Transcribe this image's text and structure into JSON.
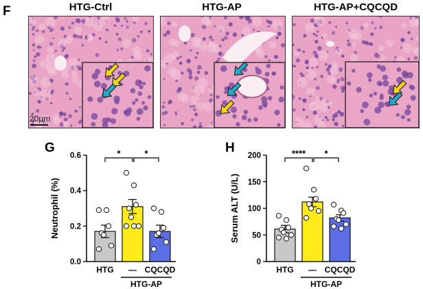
{
  "figure": {
    "panel_f_label": "F",
    "panel_g_label": "G",
    "panel_h_label": "H",
    "scale_label": "20μm",
    "colors": {
      "tissue": "#e9a3c4",
      "nucleus": "#7a4b9e",
      "arrow_yellow": "#f5d312",
      "arrow_blue": "#26a9c9"
    },
    "images": [
      {
        "title": "HTG-Ctrl",
        "arrows": [
          "yellow",
          "yellow",
          "blue"
        ]
      },
      {
        "title": "HTG-AP",
        "arrows": [
          "blue",
          "blue",
          "yellow"
        ]
      },
      {
        "title": "HTG-AP+CQCQD",
        "arrows": [
          "yellow",
          "blue"
        ]
      }
    ]
  },
  "chart_data": [
    {
      "type": "bar",
      "panel": "G",
      "ylabel": "Neutrophil (%)",
      "ylim": [
        0.0,
        0.6
      ],
      "yticks": [
        "0.0",
        "0.2",
        "0.4",
        "0.6"
      ],
      "categories": [
        "HTG",
        "—",
        "CQCQD"
      ],
      "group_label": "HTG-AP",
      "bar_colors": [
        "#c8c8c8",
        "#ffeb1a",
        "#5b6ee6"
      ],
      "values": [
        0.17,
        0.31,
        0.17
      ],
      "sem": [
        0.035,
        0.04,
        0.035
      ],
      "points": [
        [
          0.29,
          0.29,
          0.2,
          0.16,
          0.15,
          0.09,
          0.07
        ],
        [
          0.5,
          0.43,
          0.32,
          0.3,
          0.25,
          0.2,
          0.2,
          0.2
        ],
        [
          0.3,
          0.28,
          0.19,
          0.15,
          0.16,
          0.11,
          0.07
        ]
      ],
      "significance": [
        {
          "from": 0,
          "to": 1,
          "label": "*"
        },
        {
          "from": 1,
          "to": 2,
          "label": "*"
        }
      ]
    },
    {
      "type": "bar",
      "panel": "H",
      "ylabel": "Serum ALT (U/L)",
      "ylim": [
        0,
        200
      ],
      "yticks": [
        "0",
        "50",
        "100",
        "150",
        "200"
      ],
      "categories": [
        "HTG",
        "—",
        "CQCQD"
      ],
      "group_label": "HTG-AP",
      "bar_colors": [
        "#c8c8c8",
        "#ffeb1a",
        "#5b6ee6"
      ],
      "values": [
        61,
        112,
        82
      ],
      "sem": [
        7,
        9,
        6
      ],
      "points": [
        [
          86,
          78,
          64,
          60,
          55,
          50,
          45,
          43
        ],
        [
          175,
          135,
          118,
          108,
          100,
          95,
          82
        ],
        [
          107,
          96,
          91,
          80,
          78,
          70,
          66,
          62
        ]
      ],
      "significance": [
        {
          "from": 0,
          "to": 1,
          "label": "****"
        },
        {
          "from": 1,
          "to": 2,
          "label": "*"
        }
      ]
    }
  ]
}
